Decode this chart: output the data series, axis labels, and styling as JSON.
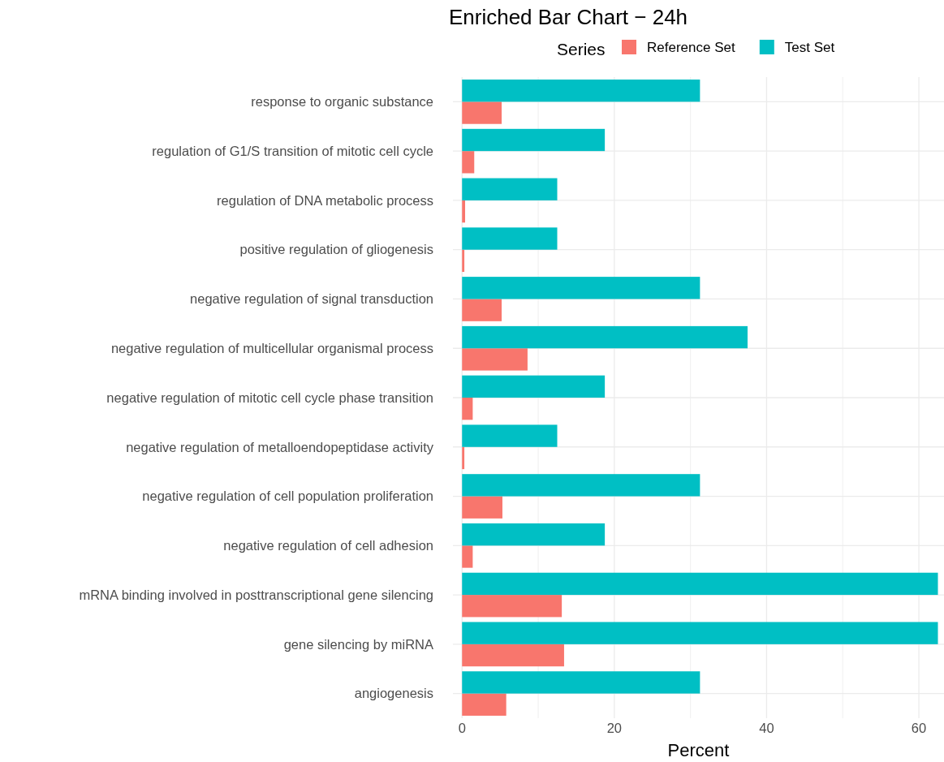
{
  "chart_data": {
    "type": "bar",
    "orientation": "horizontal",
    "title": "Enriched Bar Chart − 24h",
    "xlabel": "Percent",
    "legend_title": "Series",
    "legend": "top",
    "categories": [
      "response to organic substance",
      "regulation of G1/S transition of mitotic cell cycle",
      "regulation of DNA metabolic process",
      "positive regulation of gliogenesis",
      "negative regulation of signal transduction",
      "negative regulation of multicellular organismal process",
      "negative regulation of mitotic cell cycle phase transition",
      "negative regulation of metalloendopeptidase activity",
      "negative regulation of cell population proliferation",
      "negative regulation of cell adhesion",
      "mRNA binding involved in posttranscriptional gene silencing",
      "gene silencing by miRNA",
      "angiogenesis"
    ],
    "series": [
      {
        "name": "Reference Set",
        "color": "#f8766d",
        "values": [
          5.2,
          1.6,
          0.4,
          0.3,
          5.2,
          8.6,
          1.4,
          0.3,
          5.3,
          1.4,
          13.1,
          13.4,
          5.8
        ]
      },
      {
        "name": "Test Set",
        "color": "#00bfc4",
        "values": [
          31.25,
          18.75,
          12.5,
          12.5,
          31.25,
          37.5,
          18.75,
          12.5,
          31.25,
          18.75,
          62.5,
          62.5,
          31.25
        ]
      }
    ],
    "xlim": [
      -1.2,
      63.3
    ],
    "xticks": [
      0,
      {
        "value": 10,
        "label": null
      },
      20,
      {
        "value": 30,
        "label": null
      },
      40,
      {
        "value": 50,
        "label": null
      },
      60
    ],
    "grid": true
  }
}
